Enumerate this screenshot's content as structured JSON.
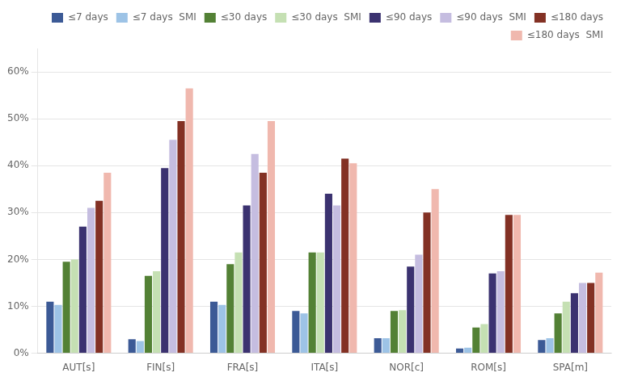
{
  "chart_data": {
    "type": "bar",
    "categories": [
      "AUT[s]",
      "FIN[s]",
      "FRA[s]",
      "ITA[s]",
      "NOR[c]",
      "ROM[s]",
      "SPA[m]"
    ],
    "series": [
      {
        "name": "≤7 days",
        "color": "#3c5a96",
        "values": [
          0.11,
          0.03,
          0.11,
          0.09,
          0.032,
          0.01,
          0.028
        ]
      },
      {
        "name": "≤7 days  SMI",
        "color": "#9dc3e6",
        "values": [
          0.103,
          0.026,
          0.103,
          0.085,
          0.032,
          0.012,
          0.032
        ]
      },
      {
        "name": "≤30 days",
        "color": "#538135",
        "values": [
          0.195,
          0.165,
          0.19,
          0.215,
          0.09,
          0.055,
          0.085
        ]
      },
      {
        "name": "≤30 days  SMI",
        "color": "#c5e0b3",
        "values": [
          0.2,
          0.175,
          0.215,
          0.215,
          0.092,
          0.062,
          0.11
        ]
      },
      {
        "name": "≤90 days",
        "color": "#3b3270",
        "values": [
          0.27,
          0.395,
          0.315,
          0.34,
          0.185,
          0.17,
          0.128
        ]
      },
      {
        "name": "≤90 days  SMI",
        "color": "#c5bde0",
        "values": [
          0.31,
          0.455,
          0.425,
          0.315,
          0.21,
          0.175,
          0.15
        ]
      },
      {
        "name": "≤180 days",
        "color": "#833124",
        "values": [
          0.325,
          0.495,
          0.385,
          0.415,
          0.3,
          0.295,
          0.15
        ]
      },
      {
        "name": "≤180 days  SMI",
        "color": "#f0b8ae",
        "values": [
          0.385,
          0.565,
          0.495,
          0.405,
          0.35,
          0.295,
          0.172
        ]
      }
    ],
    "ylim": [
      0,
      0.65
    ],
    "yticks": [
      {
        "value": 0.0,
        "label": "0%"
      },
      {
        "value": 0.1,
        "label": "10%"
      },
      {
        "value": 0.2,
        "label": "20%"
      },
      {
        "value": 0.3,
        "label": "30%"
      },
      {
        "value": 0.4,
        "label": "40%"
      },
      {
        "value": 0.5,
        "label": "50%"
      },
      {
        "value": 0.6,
        "label": "60%"
      }
    ],
    "grid": true,
    "legend": "upper right"
  }
}
